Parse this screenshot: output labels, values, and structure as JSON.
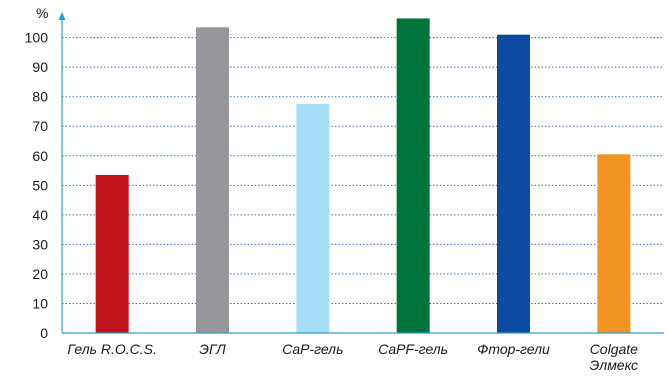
{
  "chart_data": {
    "type": "bar",
    "title": "",
    "xlabel": "",
    "ylabel": "%",
    "ylim": [
      0,
      108
    ],
    "yticks": [
      0,
      10,
      20,
      30,
      40,
      50,
      60,
      70,
      80,
      90,
      100
    ],
    "grid": true,
    "categories": [
      [
        "Гель R.O.C.S."
      ],
      [
        "ЭГЛ"
      ],
      [
        "CaP-гель"
      ],
      [
        "CaPF-гель"
      ],
      [
        "Фтор-гели"
      ],
      [
        "Colgate",
        "Элмекс"
      ]
    ],
    "values": [
      53.5,
      103.5,
      77.5,
      106.5,
      101,
      60.5
    ],
    "colors": [
      "#c0141c",
      "#96969b",
      "#a6def8",
      "#00743a",
      "#0d4ba0",
      "#f39321"
    ]
  }
}
